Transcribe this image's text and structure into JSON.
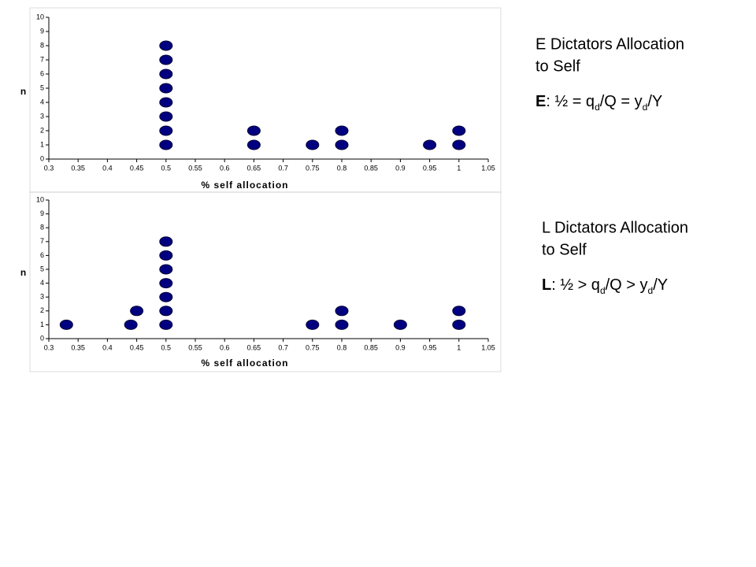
{
  "chart_data": [
    {
      "type": "scatter",
      "x_label": "% self allocation",
      "y_label": "n",
      "x": [
        0.5,
        0.5,
        0.5,
        0.5,
        0.5,
        0.5,
        0.5,
        0.5,
        0.65,
        0.65,
        0.75,
        0.8,
        0.8,
        0.95,
        1,
        1
      ],
      "values": [
        1,
        2,
        3,
        4,
        5,
        6,
        7,
        8,
        1,
        2,
        1,
        1,
        2,
        1,
        1,
        2
      ],
      "color": "#000080",
      "xlim": [
        0.3,
        1.05
      ],
      "xticks": [
        0.3,
        0.35,
        0.4,
        0.45,
        0.5,
        0.55,
        0.6,
        0.65,
        0.7,
        0.75,
        0.8,
        0.85,
        0.9,
        0.95,
        1,
        1.05
      ],
      "ylim": [
        0,
        10
      ],
      "yticks": [
        0,
        1,
        2,
        3,
        4,
        5,
        6,
        7,
        8,
        9,
        10
      ],
      "title_lines": [
        "E Dictators Allocation",
        "to Self"
      ],
      "formula": {
        "lead": "E",
        "parts": [
          ": ½ = q",
          "d",
          "/Q = y",
          "d",
          "/Y"
        ]
      }
    },
    {
      "type": "scatter",
      "x_label": "% self allocation",
      "y_label": "n",
      "x": [
        0.33,
        0.44,
        0.45,
        0.5,
        0.5,
        0.5,
        0.5,
        0.5,
        0.5,
        0.5,
        0.75,
        0.8,
        0.8,
        0.9,
        1,
        1
      ],
      "values": [
        1,
        1,
        2,
        1,
        2,
        3,
        4,
        5,
        6,
        7,
        1,
        1,
        2,
        1,
        1,
        2
      ],
      "color": "#000080",
      "xlim": [
        0.3,
        1.05
      ],
      "xticks": [
        0.3,
        0.35,
        0.4,
        0.45,
        0.5,
        0.55,
        0.6,
        0.65,
        0.7,
        0.75,
        0.8,
        0.85,
        0.9,
        0.95,
        1,
        1.05
      ],
      "ylim": [
        0,
        10
      ],
      "yticks": [
        0,
        1,
        2,
        3,
        4,
        5,
        6,
        7,
        8,
        9,
        10
      ],
      "title_lines": [
        "L Dictators Allocation",
        "to Self"
      ],
      "formula": {
        "lead": "L",
        "parts": [
          ": ½ > q",
          "d",
          "/Q > y",
          "d",
          "/Y"
        ]
      }
    }
  ]
}
